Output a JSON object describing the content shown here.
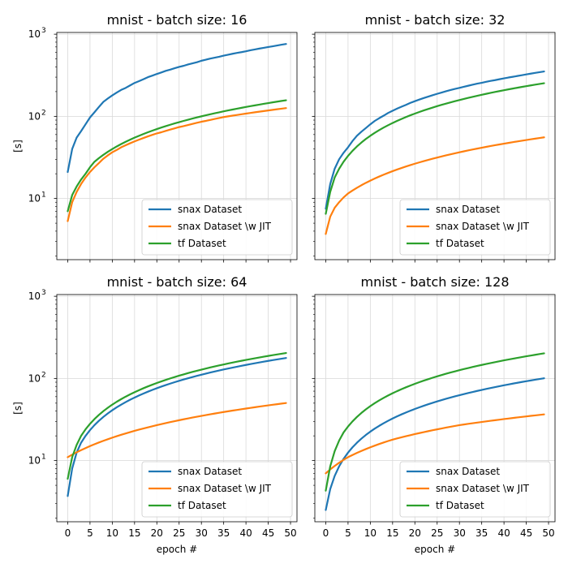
{
  "chart_data": [
    {
      "type": "line",
      "title": "mnist - batch size: 16",
      "xlabel": "",
      "ylabel": "[s]",
      "yscale": "log",
      "ylim": [
        1.8,
        1050
      ],
      "xlim": [
        -2.45,
        51.45
      ],
      "grid": true,
      "legend_position": "lower-right",
      "x_ticks": [
        "0",
        "5",
        "10",
        "15",
        "20",
        "25",
        "30",
        "35",
        "40",
        "45",
        "50"
      ],
      "y_ticks": [
        {
          "base": "10",
          "exp": "1",
          "value": 10
        },
        {
          "base": "10",
          "exp": "2",
          "value": 100
        },
        {
          "base": "10",
          "exp": "3",
          "value": 1000
        }
      ],
      "x": [
        0,
        1,
        2,
        3,
        4,
        5,
        6,
        7,
        8,
        9,
        10,
        11,
        12,
        13,
        14,
        15,
        16,
        17,
        18,
        19,
        20,
        21,
        22,
        23,
        24,
        25,
        26,
        27,
        28,
        29,
        30,
        31,
        32,
        33,
        34,
        35,
        36,
        37,
        38,
        39,
        40,
        41,
        42,
        43,
        44,
        45,
        46,
        47,
        48,
        49
      ],
      "series": [
        {
          "name": "snax Dataset",
          "color": "#1f77b4",
          "values": [
            21,
            40,
            55,
            66,
            80,
            97,
            112,
            130,
            150,
            165,
            180,
            195,
            210,
            222,
            238,
            255,
            268,
            283,
            300,
            313,
            328,
            342,
            358,
            370,
            385,
            400,
            412,
            428,
            442,
            456,
            475,
            490,
            505,
            518,
            532,
            548,
            562,
            578,
            592,
            605,
            620,
            638,
            652,
            668,
            682,
            698,
            712,
            728,
            745,
            760
          ]
        },
        {
          "name": "snax Dataset \\w JIT",
          "color": "#ff7f0e",
          "values": [
            5.3,
            9,
            12,
            15,
            18,
            21,
            24,
            27,
            30.5,
            33.5,
            36.5,
            39,
            42,
            44.5,
            47,
            49.5,
            52,
            54.5,
            57,
            59.5,
            62,
            64,
            66.5,
            69,
            71.5,
            74,
            76,
            78.5,
            81,
            83.5,
            86,
            88,
            90.5,
            93,
            95.5,
            98,
            100,
            102,
            104,
            106,
            108,
            110,
            112,
            114,
            116,
            118,
            120,
            122,
            124,
            126
          ]
        },
        {
          "name": "tf Dataset",
          "color": "#2ca02c",
          "values": [
            7,
            11,
            14,
            17,
            20,
            24,
            28,
            31,
            34,
            37,
            40,
            43,
            46,
            49,
            52,
            55,
            58,
            61,
            64,
            67,
            70,
            73,
            76,
            79,
            82,
            85,
            88,
            91,
            94,
            97,
            100,
            103,
            106,
            109,
            112,
            115,
            118,
            121,
            124,
            127,
            130,
            133,
            136,
            139,
            142,
            145,
            148,
            151,
            154,
            157
          ]
        }
      ]
    },
    {
      "type": "line",
      "title": "mnist - batch size: 32",
      "xlabel": "",
      "ylabel": "",
      "yscale": "log",
      "ylim": [
        1.8,
        1050
      ],
      "xlim": [
        -2.45,
        51.45
      ],
      "grid": true,
      "legend_position": "lower-right",
      "x_ticks": [
        "0",
        "5",
        "10",
        "15",
        "20",
        "25",
        "30",
        "35",
        "40",
        "45",
        "50"
      ],
      "y_ticks": [],
      "x": [
        0,
        1,
        2,
        3,
        4,
        5,
        6,
        7,
        8,
        9,
        10,
        11,
        12,
        13,
        14,
        15,
        16,
        17,
        18,
        19,
        20,
        21,
        22,
        23,
        24,
        25,
        26,
        27,
        28,
        29,
        30,
        31,
        32,
        33,
        34,
        35,
        36,
        37,
        38,
        39,
        40,
        41,
        42,
        43,
        44,
        45,
        46,
        47,
        48,
        49
      ],
      "series": [
        {
          "name": "snax Dataset",
          "color": "#1f77b4",
          "values": [
            7.5,
            15,
            23,
            30,
            36,
            42,
            50,
            58,
            65,
            72,
            80,
            88,
            95,
            102,
            110,
            117,
            124,
            131,
            138,
            146,
            153,
            160,
            167,
            174,
            181,
            188,
            195,
            202,
            209,
            216,
            222,
            229,
            236,
            243,
            250,
            256,
            263,
            270,
            276,
            283,
            290,
            297,
            303,
            310,
            317,
            324,
            331,
            338,
            345,
            352
          ]
        },
        {
          "name": "snax Dataset \\w JIT",
          "color": "#ff7f0e",
          "values": [
            3.7,
            6,
            7.7,
            9,
            10.3,
            11.5,
            12.5,
            13.5,
            14.5,
            15.5,
            16.5,
            17.5,
            18.5,
            19.5,
            20.5,
            21.5,
            22.5,
            23.5,
            24.5,
            25.5,
            26.5,
            27.5,
            28.5,
            29.5,
            30.5,
            31.5,
            32.5,
            33.5,
            34.5,
            35.5,
            36.5,
            37.5,
            38.5,
            39.5,
            40.5,
            41.5,
            42.5,
            43.5,
            44.5,
            45.5,
            46.5,
            47.5,
            48.5,
            49.5,
            50.5,
            51.5,
            52.5,
            53.5,
            54.5,
            55.5
          ]
        },
        {
          "name": "tf Dataset",
          "color": "#2ca02c",
          "values": [
            6.5,
            12,
            18,
            23,
            28,
            33,
            38,
            43,
            48,
            53,
            58,
            63,
            68,
            73,
            78,
            83,
            88,
            93,
            98,
            103,
            108,
            113,
            118,
            123,
            128,
            133,
            138,
            143,
            148,
            153,
            158,
            163,
            168,
            173,
            178,
            183,
            188,
            193,
            198,
            203,
            208,
            213,
            218,
            223,
            228,
            233,
            238,
            243,
            248,
            253
          ]
        }
      ]
    },
    {
      "type": "line",
      "title": "mnist - batch size: 64",
      "xlabel": "epoch #",
      "ylabel": "[s]",
      "yscale": "log",
      "ylim": [
        1.8,
        1050
      ],
      "xlim": [
        -2.45,
        51.45
      ],
      "grid": true,
      "legend_position": "lower-right",
      "x_ticks": [
        "0",
        "5",
        "10",
        "15",
        "20",
        "25",
        "30",
        "35",
        "40",
        "45",
        "50"
      ],
      "y_ticks": [
        {
          "base": "10",
          "exp": "1",
          "value": 10
        },
        {
          "base": "10",
          "exp": "2",
          "value": 100
        },
        {
          "base": "10",
          "exp": "3",
          "value": 1000
        }
      ],
      "x": [
        0,
        1,
        2,
        3,
        4,
        5,
        6,
        7,
        8,
        9,
        10,
        11,
        12,
        13,
        14,
        15,
        16,
        17,
        18,
        19,
        20,
        21,
        22,
        23,
        24,
        25,
        26,
        27,
        28,
        29,
        30,
        31,
        32,
        33,
        34,
        35,
        36,
        37,
        38,
        39,
        40,
        41,
        42,
        43,
        44,
        45,
        46,
        47,
        48,
        49
      ],
      "series": [
        {
          "name": "snax Dataset",
          "color": "#1f77b4",
          "values": [
            3.7,
            8,
            12.5,
            16.5,
            20,
            23.5,
            27,
            30.5,
            34,
            37.5,
            41,
            44.5,
            48,
            51.5,
            55,
            58.5,
            62,
            65.5,
            69,
            72.5,
            76,
            79.5,
            83,
            86.5,
            90,
            93.5,
            97,
            100.5,
            104,
            107.5,
            111,
            114.5,
            118,
            121.5,
            125,
            128.5,
            132,
            135.5,
            139,
            142.5,
            146,
            149.5,
            153,
            156.5,
            160,
            163.5,
            167,
            170.5,
            174,
            177.5
          ]
        },
        {
          "name": "snax Dataset \\w JIT",
          "color": "#ff7f0e",
          "values": [
            11,
            11.8,
            12.6,
            13.4,
            14.2,
            15,
            15.8,
            16.6,
            17.4,
            18.2,
            19,
            19.8,
            20.6,
            21.4,
            22.2,
            23,
            23.8,
            24.6,
            25.4,
            26.2,
            27,
            27.8,
            28.6,
            29.4,
            30.2,
            31,
            31.8,
            32.6,
            33.4,
            34.2,
            35,
            35.8,
            36.6,
            37.4,
            38.2,
            39,
            39.8,
            40.6,
            41.4,
            42.2,
            43,
            43.8,
            44.6,
            45.4,
            46.2,
            47,
            47.8,
            48.6,
            49.4,
            50.2
          ]
        },
        {
          "name": "tf Dataset",
          "color": "#2ca02c",
          "values": [
            6,
            11,
            15.5,
            20,
            24,
            28,
            32,
            36,
            40,
            44,
            48,
            52,
            56,
            60,
            64,
            68,
            72,
            76,
            80,
            84,
            88,
            92,
            96,
            100,
            104,
            108,
            112,
            116,
            120,
            124,
            128,
            132,
            136,
            140,
            144,
            148,
            152,
            156,
            160,
            164,
            168,
            172,
            176,
            180,
            184,
            188,
            192,
            196,
            200,
            204
          ]
        }
      ]
    },
    {
      "type": "line",
      "title": "mnist - batch size: 128",
      "xlabel": "epoch #",
      "ylabel": "",
      "yscale": "log",
      "ylim": [
        1.8,
        1050
      ],
      "xlim": [
        -2.45,
        51.45
      ],
      "grid": true,
      "legend_position": "lower-right",
      "x_ticks": [
        "0",
        "5",
        "10",
        "15",
        "20",
        "25",
        "30",
        "35",
        "40",
        "45",
        "50"
      ],
      "y_ticks": [],
      "x": [
        0,
        1,
        2,
        3,
        4,
        5,
        6,
        7,
        8,
        9,
        10,
        11,
        12,
        13,
        14,
        15,
        16,
        17,
        18,
        19,
        20,
        21,
        22,
        23,
        24,
        25,
        26,
        27,
        28,
        29,
        30,
        31,
        32,
        33,
        34,
        35,
        36,
        37,
        38,
        39,
        40,
        41,
        42,
        43,
        44,
        45,
        46,
        47,
        48,
        49
      ],
      "series": [
        {
          "name": "snax Dataset",
          "color": "#1f77b4",
          "values": [
            2.5,
            4.5,
            6.5,
            8.5,
            10.5,
            12.5,
            14.5,
            16.5,
            18.5,
            20.5,
            22.5,
            24.5,
            26.5,
            28.5,
            30.5,
            32.5,
            34.5,
            36.5,
            38.5,
            40.5,
            42.5,
            44.5,
            46.5,
            48.5,
            50.5,
            52.5,
            54.5,
            56.5,
            58.5,
            60.5,
            62.5,
            64.5,
            66.5,
            68.5,
            70.5,
            72.5,
            74.5,
            76.5,
            78.5,
            80.5,
            82.5,
            84.5,
            86.5,
            88.5,
            90.5,
            92.5,
            94.5,
            96.5,
            98.5,
            100.5
          ]
        },
        {
          "name": "snax Dataset \\w JIT",
          "color": "#ff7f0e",
          "values": [
            7,
            7.8,
            8.6,
            9.4,
            10.2,
            11,
            11.7,
            12.4,
            13.1,
            13.8,
            14.5,
            15.2,
            15.9,
            16.6,
            17.3,
            18,
            18.6,
            19.2,
            19.8,
            20.4,
            21,
            21.6,
            22.2,
            22.8,
            23.4,
            24,
            24.6,
            25.2,
            25.8,
            26.4,
            27,
            27.5,
            28,
            28.5,
            29,
            29.5,
            30,
            30.5,
            31,
            31.5,
            32,
            32.5,
            33,
            33.5,
            34,
            34.5,
            35,
            35.5,
            36,
            36.5
          ]
        },
        {
          "name": "tf Dataset",
          "color": "#2ca02c",
          "values": [
            4.3,
            8.5,
            13,
            17.5,
            22,
            26,
            30,
            34,
            38,
            42,
            46,
            50,
            54,
            58,
            62,
            66,
            70,
            74,
            78,
            82,
            86,
            90,
            94,
            98,
            102,
            106,
            110,
            114,
            118,
            122,
            126,
            130,
            134,
            138,
            142,
            146,
            150,
            154,
            158,
            162,
            166,
            170,
            174,
            178,
            182,
            186,
            190,
            194,
            198,
            202
          ]
        }
      ]
    }
  ]
}
